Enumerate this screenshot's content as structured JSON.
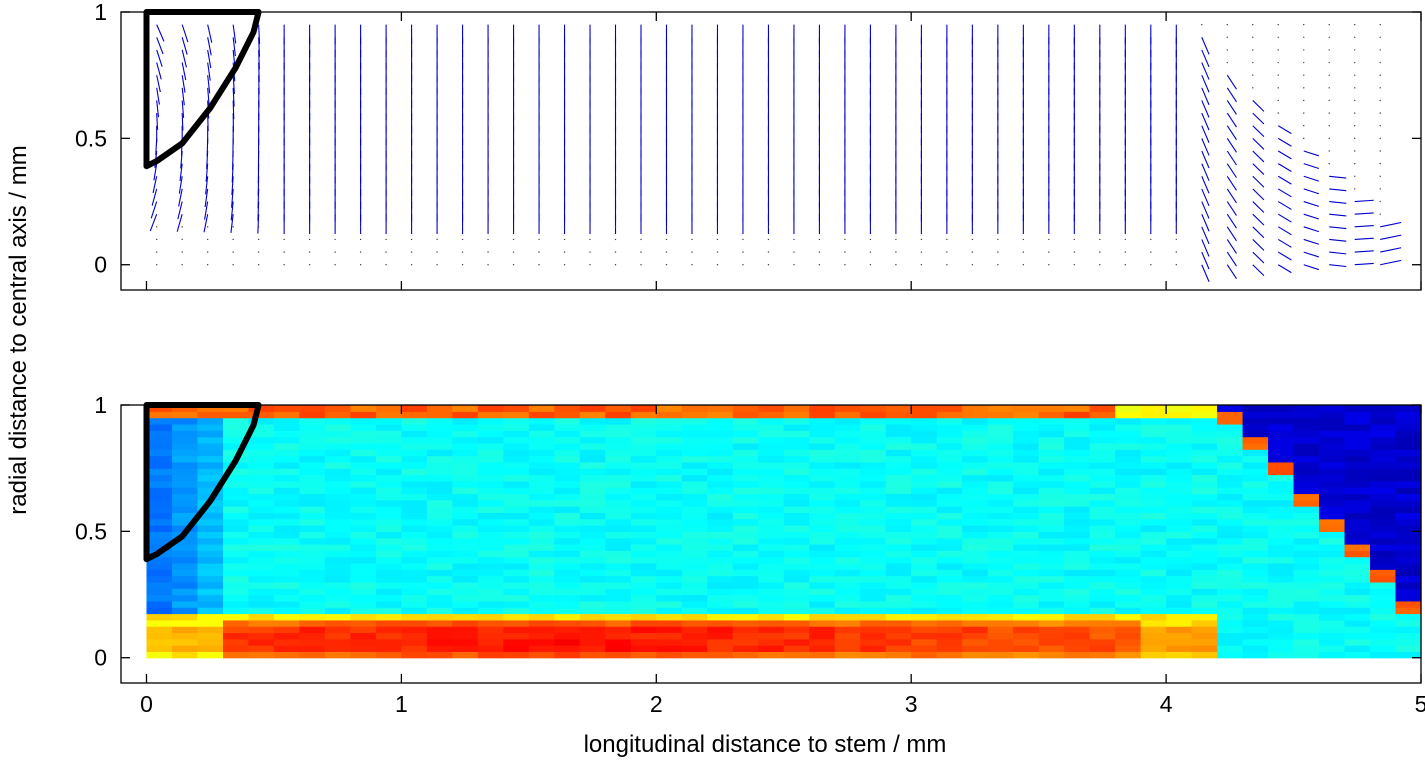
{
  "chart_data": [
    {
      "type": "quiver",
      "xlim": [
        -0.1,
        5.0
      ],
      "ylim": [
        -0.1,
        1.0
      ],
      "xticks": [
        0,
        1,
        2,
        3,
        4,
        5
      ],
      "xtick_labels": [
        "",
        "",
        "",
        "",
        "",
        ""
      ],
      "yticks": [
        0,
        0.5,
        1
      ],
      "ytick_labels": [
        "0",
        "0.5",
        "1"
      ],
      "arrow_color": "#0000cc",
      "outline": {
        "color": "#000000",
        "points": [
          [
            0,
            1.0
          ],
          [
            0.44,
            1.0
          ],
          [
            0.42,
            0.92
          ],
          [
            0.35,
            0.78
          ],
          [
            0.25,
            0.62
          ],
          [
            0.14,
            0.48
          ],
          [
            0.04,
            0.41
          ],
          [
            0.0,
            0.39
          ],
          [
            0.0,
            1.0
          ]
        ]
      },
      "grid": {
        "x_start": 0.04,
        "x_step": 0.1,
        "x_count": 49,
        "y_values": [
          0.95,
          0.9,
          0.85,
          0.8,
          0.75,
          0.7,
          0.65,
          0.6,
          0.55,
          0.5,
          0.45,
          0.4,
          0.35,
          0.3,
          0.25,
          0.2,
          0.15,
          0.1,
          0.05,
          0.0
        ]
      }
    },
    {
      "type": "heatmap",
      "colormap": "jet",
      "xlim": [
        -0.1,
        5.0
      ],
      "ylim": [
        -0.1,
        1.0
      ],
      "xticks": [
        0,
        1,
        2,
        3,
        4,
        5
      ],
      "xtick_labels": [
        "0",
        "1",
        "2",
        "3",
        "4",
        "5"
      ],
      "yticks": [
        0,
        0.5,
        1
      ],
      "ytick_labels": [
        "0",
        "0.5",
        "1"
      ],
      "outline": {
        "color": "#000000",
        "points": [
          [
            0,
            1.0
          ],
          [
            0.44,
            1.0
          ],
          [
            0.42,
            0.92
          ],
          [
            0.35,
            0.78
          ],
          [
            0.25,
            0.62
          ],
          [
            0.14,
            0.48
          ],
          [
            0.04,
            0.41
          ],
          [
            0.0,
            0.39
          ],
          [
            0.0,
            1.0
          ]
        ]
      },
      "cells": {
        "x_start": 0.0,
        "x_step": 0.1,
        "x_count": 50,
        "y_start": 0.0,
        "y_step": 0.025,
        "y_count": 40
      }
    }
  ],
  "ylabel": "radial distance to central axis / mm",
  "xlabel": "longitudinal distance to stem / mm"
}
